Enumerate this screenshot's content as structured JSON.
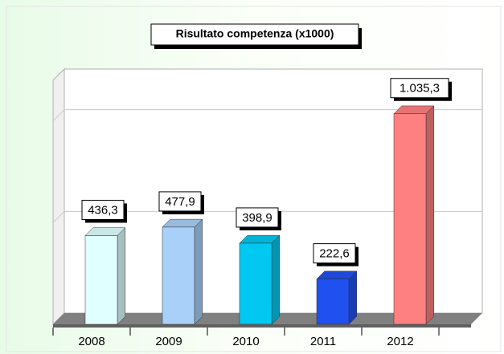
{
  "chart_data": {
    "type": "bar3d",
    "title": "Risultato competenza (x1000)",
    "categories": [
      "2008",
      "2009",
      "2010",
      "2011",
      "2012"
    ],
    "values": [
      436.3,
      477.9,
      398.9,
      222.6,
      1035.3
    ],
    "value_labels": [
      "436,3",
      "477,9",
      "398,9",
      "222,6",
      "1.035,3"
    ],
    "colors": [
      "#e0ffff",
      "#a8d0f8",
      "#00c8f0",
      "#2050f0",
      "#ff8080"
    ],
    "ylim": [
      0,
      1200
    ],
    "yticks": [
      0,
      500,
      1000
    ],
    "grid": true
  }
}
